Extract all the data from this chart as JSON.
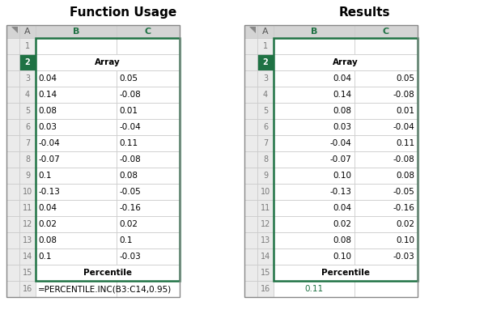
{
  "title_left": "Function Usage",
  "title_right": "Results",
  "row_numbers": [
    1,
    2,
    3,
    4,
    5,
    6,
    7,
    8,
    9,
    10,
    11,
    12,
    13,
    14,
    15,
    16
  ],
  "b_col_data": [
    "",
    "Array",
    "0.04",
    "0.14",
    "0.08",
    "0.03",
    "-0.04",
    "-0.07",
    "0.1",
    "-0.13",
    "0.04",
    "0.02",
    "0.08",
    "0.1",
    "Percentile",
    "=PERCENTILE.INC(B3:C14,0.95)"
  ],
  "c_col_data": [
    "",
    "",
    "0.05",
    "-0.08",
    "0.01",
    "-0.04",
    "0.11",
    "-0.08",
    "0.08",
    "-0.05",
    "-0.16",
    "0.02",
    "0.1",
    "-0.03",
    "",
    ""
  ],
  "b_col_results": [
    "",
    "Array",
    "0.04",
    "0.14",
    "0.08",
    "0.03",
    "-0.04",
    "-0.07",
    "0.10",
    "-0.13",
    "0.04",
    "0.02",
    "0.08",
    "0.10",
    "Percentile",
    "0.11"
  ],
  "c_col_results": [
    "",
    "",
    "0.05",
    "-0.08",
    "0.01",
    "-0.04",
    "0.11",
    "-0.08",
    "0.08",
    "-0.05",
    "-0.16",
    "0.02",
    "0.10",
    "-0.03",
    "",
    ""
  ],
  "header_bg": "#d4d4d4",
  "header_text_color": "#1f7244",
  "row_num_selected_bg": "#1f7244",
  "row_num_selected_text": "#ffffff",
  "row_num_normal_bg": "#ebebeb",
  "row_num_normal_text": "#7a7a7a",
  "cell_bg_white": "#ffffff",
  "green_border_color": "#1f7244",
  "grid_color": "#c8c8c8",
  "outer_border_color": "#888888",
  "title_font_size": 11,
  "content_font_size": 7.5,
  "header_font_size": 8,
  "bold_rows": [
    2,
    15
  ],
  "merged_rows": [
    2,
    15
  ],
  "result_value_color": "#1f7244",
  "background_color": "#ffffff"
}
